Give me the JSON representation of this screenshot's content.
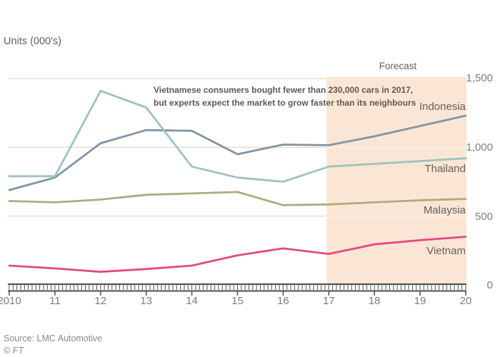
{
  "title": "Units (000's)",
  "forecast_label": "Forecast",
  "annotation": {
    "line1": "Vietnamese consumers bought fewer than 230,000 cars in 2017,",
    "line2": "but experts expect the market to grow faster than its neighbours"
  },
  "source": "Source: LMC Automotive",
  "copyright": "© FT",
  "colors": {
    "background": "#ffffff",
    "forecast_band": "#fbe6d5",
    "gridline": "#e9ddcc",
    "gridline_on_band": "#fdf3e7",
    "axis": "#524d49",
    "text_dark": "#66605c",
    "text_grey": "#827c76",
    "annotation_text": "#5d5852",
    "source_text": "#8d8781"
  },
  "chart_data": {
    "type": "line",
    "x": [
      2010,
      2011,
      2012,
      2013,
      2014,
      2015,
      2016,
      2017,
      2018,
      2019,
      2020
    ],
    "x_tick_labels": [
      "2010",
      "11",
      "12",
      "13",
      "14",
      "15",
      "16",
      "17",
      "18",
      "19",
      "20"
    ],
    "series": [
      {
        "name": "Indonesia",
        "color": "#8294a6",
        "values": [
          690,
          780,
          1030,
          1125,
          1120,
          950,
          1020,
          1015,
          1080,
          1155,
          1230
        ]
      },
      {
        "name": "Thailand",
        "color": "#9dc3bc",
        "values": [
          790,
          790,
          1410,
          1290,
          860,
          780,
          750,
          860,
          880,
          900,
          920
        ]
      },
      {
        "name": "Malaysia",
        "color": "#aeac7e",
        "values": [
          610,
          600,
          620,
          655,
          665,
          675,
          580,
          585,
          600,
          615,
          625
        ]
      },
      {
        "name": "Vietnam",
        "color": "#e6487e",
        "values": [
          140,
          120,
          95,
          115,
          140,
          215,
          265,
          225,
          295,
          325,
          350
        ]
      }
    ],
    "ylabel": "Units (000's)",
    "ylim": [
      0,
      1500
    ],
    "yticks": [
      0,
      500,
      1000,
      1500
    ],
    "ytick_labels": [
      "0",
      "500",
      "1,000",
      "1,500"
    ],
    "grid": true,
    "forecast_start": 2017,
    "forecast_end": 2020,
    "legend_position": "right-of-lines"
  }
}
